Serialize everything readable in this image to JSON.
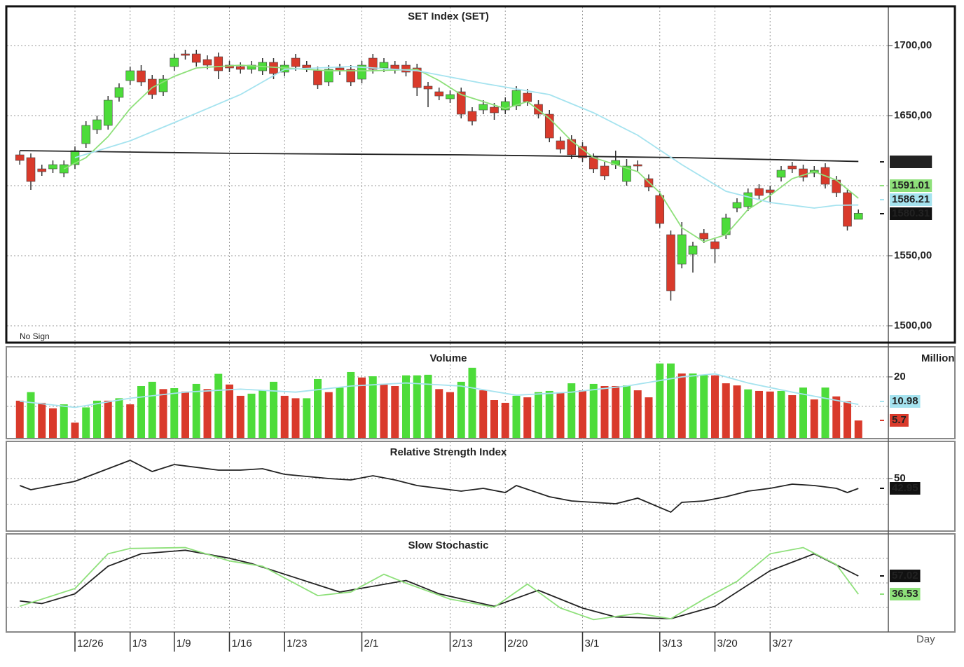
{
  "chart_data": [
    {
      "type": "candlestick",
      "title": "SET Index (SET)",
      "annotation": "No Sign",
      "open": [
        1622,
        1620,
        1612,
        1612,
        1609,
        1615,
        1630,
        1640,
        1643,
        1663,
        1675,
        1682,
        1676,
        1667,
        1685,
        1694,
        1694,
        1690,
        1692,
        1686,
        1685,
        1683,
        1682,
        1688,
        1681,
        1691,
        1686,
        1682,
        1674,
        1684,
        1683,
        1676,
        1691,
        1684,
        1686,
        1686,
        1684,
        1671,
        1667,
        1662,
        1667,
        1653,
        1654,
        1656,
        1654,
        1657,
        1666,
        1658,
        1651,
        1632,
        1633,
        1628,
        1620,
        1614,
        1615,
        1603,
        1615,
        1605,
        1593,
        1565,
        1544,
        1551,
        1566,
        1560,
        1565,
        1584,
        1585,
        1598,
        1597,
        1606,
        1614,
        1612,
        1609,
        1613,
        1604,
        1595,
        1576
      ],
      "high": [
        1625,
        1623,
        1615,
        1618,
        1618,
        1628,
        1646,
        1650,
        1664,
        1673,
        1685,
        1686,
        1679,
        1679,
        1694,
        1697,
        1697,
        1693,
        1695,
        1689,
        1688,
        1689,
        1691,
        1691,
        1689,
        1694,
        1689,
        1685,
        1686,
        1687,
        1686,
        1689,
        1694,
        1691,
        1689,
        1689,
        1687,
        1674,
        1670,
        1668,
        1670,
        1656,
        1661,
        1659,
        1663,
        1671,
        1669,
        1661,
        1654,
        1635,
        1636,
        1631,
        1623,
        1617,
        1625,
        1619,
        1618,
        1608,
        1596,
        1568,
        1574,
        1560,
        1569,
        1563,
        1580,
        1591,
        1598,
        1601,
        1600,
        1614,
        1617,
        1615,
        1614,
        1616,
        1607,
        1598,
        1583
      ],
      "low": [
        1615,
        1597,
        1607,
        1609,
        1606,
        1612,
        1627,
        1637,
        1640,
        1660,
        1672,
        1671,
        1662,
        1664,
        1682,
        1690,
        1685,
        1683,
        1676,
        1681,
        1680,
        1680,
        1679,
        1676,
        1678,
        1682,
        1681,
        1669,
        1671,
        1679,
        1671,
        1673,
        1680,
        1681,
        1680,
        1678,
        1664,
        1656,
        1661,
        1659,
        1648,
        1643,
        1651,
        1647,
        1651,
        1654,
        1657,
        1648,
        1631,
        1623,
        1619,
        1617,
        1609,
        1604,
        1612,
        1600,
        1610,
        1596,
        1570,
        1518,
        1541,
        1538,
        1559,
        1545,
        1562,
        1581,
        1582,
        1590,
        1588,
        1603,
        1609,
        1603,
        1606,
        1598,
        1592,
        1568,
        1576
      ],
      "close": [
        1618,
        1603,
        1610,
        1615,
        1615,
        1625,
        1643,
        1647,
        1661,
        1670,
        1682,
        1674,
        1665,
        1676,
        1691,
        1693,
        1688,
        1686,
        1682,
        1684,
        1683,
        1686,
        1688,
        1680,
        1686,
        1685,
        1684,
        1672,
        1683,
        1682,
        1674,
        1686,
        1683,
        1688,
        1683,
        1681,
        1670,
        1669,
        1664,
        1665,
        1651,
        1646,
        1658,
        1652,
        1660,
        1668,
        1660,
        1651,
        1634,
        1626,
        1622,
        1620,
        1612,
        1607,
        1618,
        1614,
        1614,
        1599,
        1573,
        1525,
        1565,
        1557,
        1562,
        1555,
        1577,
        1588,
        1595,
        1593,
        1595,
        1611,
        1612,
        1606,
        1611,
        1601,
        1595,
        1571,
        1580.31
      ],
      "up_color": "#4ddc3a",
      "down_color": "#d93a2b",
      "ylim": [
        1488.5,
        1727.5
      ],
      "yticks": [
        {
          "value": 1500,
          "label": "1500,00"
        },
        {
          "value": 1550,
          "label": "1550,00"
        },
        {
          "value": 1650,
          "label": "1650,00"
        },
        {
          "value": 1700,
          "label": "1700,00"
        }
      ],
      "grid": true,
      "lines": [
        {
          "color": "#222222",
          "x": [
            0,
            20,
            40,
            60,
            76
          ],
          "values": [
            1625,
            1623,
            1622,
            1620,
            1617.29
          ]
        },
        {
          "color": "#8ee07a",
          "x": [
            4,
            6,
            8,
            10,
            12,
            14,
            16,
            20,
            24,
            28,
            32,
            36,
            38,
            40,
            44,
            46,
            48,
            50,
            52,
            56,
            58,
            60,
            62,
            64,
            66,
            68,
            70,
            72,
            74,
            76
          ],
          "values": [
            1612,
            1620,
            1635,
            1655,
            1670,
            1678,
            1684,
            1686,
            1684,
            1682,
            1682,
            1683,
            1675,
            1665,
            1655,
            1660,
            1648,
            1632,
            1620,
            1610,
            1595,
            1570,
            1560,
            1565,
            1583,
            1593,
            1605,
            1610,
            1604,
            1591.01
          ]
        },
        {
          "color": "#a5e3ef",
          "x": [
            5,
            10,
            14,
            20,
            24,
            30,
            36,
            42,
            48,
            52,
            56,
            60,
            64,
            68,
            72,
            74,
            76
          ],
          "values": [
            1620,
            1632,
            1645,
            1665,
            1683,
            1685,
            1682,
            1673,
            1665,
            1652,
            1636,
            1615,
            1596,
            1588,
            1584,
            1586,
            1586.21
          ]
        }
      ]
    },
    {
      "type": "bar",
      "title": "Volume",
      "unit_label": "Million",
      "values": [
        12.2,
        15,
        11.5,
        9.7,
        11,
        5,
        10,
        12.2,
        12.2,
        13,
        11,
        17,
        18.4,
        16,
        16.3,
        15.2,
        17.7,
        16,
        21,
        17.5,
        13.8,
        14.5,
        15.6,
        18.4,
        13.8,
        13,
        13,
        19.3,
        15,
        16.5,
        21.6,
        19.8,
        20.2,
        17.7,
        17,
        20.5,
        20.5,
        20.7,
        16,
        15,
        18.4,
        23,
        15.6,
        12.4,
        11.5,
        13.8,
        13.3,
        15,
        15.4,
        14.7,
        17.9,
        15.6,
        17.7,
        17,
        17,
        17.2,
        15.6,
        13.3,
        24.4,
        24.4,
        21.1,
        21.1,
        20.7,
        20.5,
        17.9,
        17.2,
        15.9,
        15.4,
        15.2,
        15.4,
        14,
        16.5,
        12.6,
        16.5,
        13.6,
        12,
        5.7
      ],
      "colors": [
        "#d93a2b",
        "#4ddc3a",
        "#d93a2b",
        "#d93a2b",
        "#4ddc3a",
        "#d93a2b",
        "#4ddc3a",
        "#4ddc3a",
        "#d93a2b",
        "#4ddc3a",
        "#d93a2b",
        "#4ddc3a",
        "#4ddc3a",
        "#d93a2b",
        "#4ddc3a",
        "#d93a2b",
        "#4ddc3a",
        "#d93a2b",
        "#4ddc3a",
        "#d93a2b",
        "#d93a2b",
        "#4ddc3a",
        "#4ddc3a",
        "#4ddc3a",
        "#d93a2b",
        "#d93a2b",
        "#4ddc3a",
        "#4ddc3a",
        "#d93a2b",
        "#4ddc3a",
        "#4ddc3a",
        "#d93a2b",
        "#4ddc3a",
        "#d93a2b",
        "#d93a2b",
        "#4ddc3a",
        "#4ddc3a",
        "#4ddc3a",
        "#d93a2b",
        "#d93a2b",
        "#4ddc3a",
        "#4ddc3a",
        "#d93a2b",
        "#d93a2b",
        "#d93a2b",
        "#4ddc3a",
        "#d93a2b",
        "#4ddc3a",
        "#4ddc3a",
        "#d93a2b",
        "#4ddc3a",
        "#d93a2b",
        "#4ddc3a",
        "#d93a2b",
        "#d93a2b",
        "#4ddc3a",
        "#d93a2b",
        "#d93a2b",
        "#4ddc3a",
        "#4ddc3a",
        "#d93a2b",
        "#4ddc3a",
        "#4ddc3a",
        "#d93a2b",
        "#d93a2b",
        "#d93a2b",
        "#4ddc3a",
        "#d93a2b",
        "#d93a2b",
        "#4ddc3a",
        "#d93a2b",
        "#4ddc3a",
        "#d93a2b",
        "#4ddc3a",
        "#d93a2b",
        "#d93a2b",
        "#d93a2b"
      ],
      "ylim": [
        0,
        29.4
      ],
      "yticks": [
        20
      ],
      "grid": true,
      "lines": [
        {
          "color": "#a5e3ef",
          "x": [
            0,
            5,
            10,
            15,
            20,
            25,
            30,
            35,
            40,
            45,
            50,
            55,
            60,
            63,
            66,
            70,
            76
          ],
          "values": [
            12,
            10,
            13,
            15,
            16,
            15,
            17,
            18,
            17,
            14,
            15,
            17,
            20,
            21,
            18,
            15,
            10.98
          ]
        }
      ]
    },
    {
      "type": "line",
      "title": "Relative Strength Index",
      "ylim": [
        13,
        75.5
      ],
      "yticks": [
        50
      ],
      "grid": true,
      "lines": [
        {
          "color": "#222222",
          "x": [
            0,
            1,
            5,
            7,
            10,
            12,
            14,
            18,
            20,
            22,
            24,
            28,
            30,
            32,
            34,
            36,
            40,
            42,
            44,
            45,
            48,
            50,
            54,
            56,
            59,
            60,
            62,
            64,
            66,
            68,
            70,
            72,
            74,
            75,
            76
          ],
          "values": [
            45,
            42,
            48,
            54,
            63,
            55,
            60,
            56,
            56,
            57,
            53,
            50,
            49,
            52,
            49,
            45,
            41,
            43,
            40,
            45,
            37,
            34,
            32,
            36,
            26,
            33,
            34,
            37,
            41,
            43,
            46,
            45,
            43,
            40,
            42.95
          ]
        }
      ]
    },
    {
      "type": "line",
      "title": "Slow Stochastic",
      "xlabel": "Day",
      "ylim": [
        -4.3,
        102.8
      ],
      "categories": [
        null,
        null,
        null,
        null,
        null,
        "12/26",
        null,
        null,
        null,
        null,
        "1/3",
        null,
        null,
        null,
        "1/9",
        null,
        null,
        null,
        null,
        "1/16",
        null,
        null,
        null,
        null,
        "1/23",
        null,
        null,
        null,
        null,
        null,
        null,
        "2/1",
        null,
        null,
        null,
        null,
        null,
        null,
        null,
        "2/13",
        null,
        null,
        null,
        null,
        "2/20",
        null,
        null,
        null,
        null,
        null,
        null,
        "3/1",
        null,
        null,
        null,
        null,
        null,
        null,
        "3/13",
        null,
        null,
        null,
        null,
        "3/20",
        null,
        null,
        null,
        null,
        "3/27",
        null,
        null,
        null,
        null,
        null,
        null,
        null,
        null
      ],
      "lines": [
        {
          "color": "#222222",
          "x": [
            0,
            2,
            5,
            8,
            11,
            15,
            19,
            21,
            25,
            29,
            35,
            38,
            43,
            47,
            51,
            54,
            59,
            63,
            68,
            72,
            76
          ],
          "values": [
            29,
            26,
            37,
            68,
            82,
            86,
            77,
            71,
            55,
            39,
            52,
            37,
            23,
            41,
            21,
            11,
            9,
            23,
            63,
            82,
            57.02
          ]
        },
        {
          "color": "#8ee07a",
          "x": [
            0,
            5,
            8,
            10,
            15,
            19,
            22,
            27,
            30,
            33,
            35,
            39,
            43,
            46,
            49,
            52,
            56,
            59,
            62,
            65,
            68,
            71,
            74,
            76
          ],
          "values": [
            23,
            43,
            82,
            88,
            89,
            74,
            68,
            35,
            39,
            59,
            49,
            31,
            22,
            48,
            21,
            8,
            15,
            9,
            31,
            51,
            82,
            89,
            70,
            36.53
          ]
        }
      ]
    }
  ]
}
